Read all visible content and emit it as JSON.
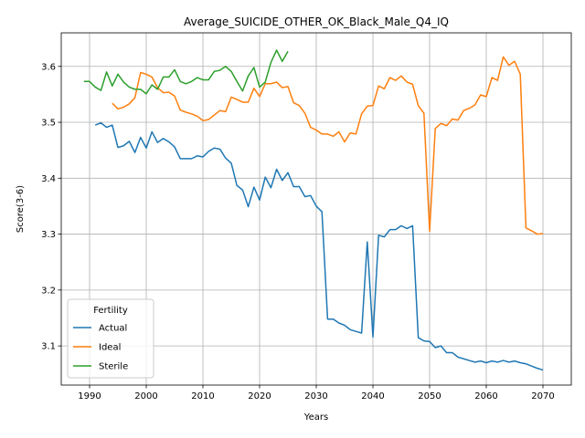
{
  "chart_data": {
    "type": "line",
    "title": "Average_SUICIDE_OTHER_OK_Black_Male_Q4_IQ",
    "xlabel": "Years",
    "ylabel": "Score(3-6)",
    "xlim": [
      1985,
      2075
    ],
    "ylim": [
      3.03,
      3.66
    ],
    "xticks": [
      1990,
      2000,
      2010,
      2020,
      2030,
      2040,
      2050,
      2060,
      2070
    ],
    "yticks": [
      3.1,
      3.2,
      3.3,
      3.4,
      3.5,
      3.6
    ],
    "grid": true,
    "legend": {
      "title": "Fertility",
      "placement": "lower-left"
    },
    "series": [
      {
        "name": "Actual",
        "color": "#1f77b4",
        "x": [
          1991,
          1992,
          1993,
          1994,
          1995,
          1996,
          1997,
          1998,
          1999,
          2000,
          2001,
          2002,
          2003,
          2004,
          2005,
          2006,
          2007,
          2008,
          2009,
          2010,
          2011,
          2012,
          2013,
          2014,
          2015,
          2016,
          2017,
          2018,
          2019,
          2020,
          2021,
          2022,
          2023,
          2024,
          2025,
          2026,
          2027,
          2028,
          2029,
          2030,
          2031,
          2032,
          2033,
          2034,
          2035,
          2036,
          2037,
          2038,
          2039,
          2040,
          2041,
          2042,
          2043,
          2044,
          2045,
          2046,
          2047,
          2048,
          2049,
          2050,
          2051,
          2052,
          2053,
          2054,
          2055,
          2056,
          2057,
          2058,
          2059,
          2060,
          2061,
          2062,
          2063,
          2064,
          2065,
          2066,
          2067,
          2068,
          2069,
          2070
        ],
        "values": [
          3.495,
          3.499,
          3.491,
          3.495,
          3.455,
          3.458,
          3.466,
          3.446,
          3.473,
          3.454,
          3.483,
          3.464,
          3.471,
          3.465,
          3.456,
          3.435,
          3.435,
          3.435,
          3.44,
          3.438,
          3.448,
          3.454,
          3.452,
          3.436,
          3.427,
          3.387,
          3.379,
          3.349,
          3.384,
          3.361,
          3.402,
          3.383,
          3.416,
          3.396,
          3.41,
          3.385,
          3.385,
          3.367,
          3.369,
          3.35,
          3.34,
          3.148,
          3.148,
          3.141,
          3.137,
          3.129,
          3.126,
          3.123,
          3.286,
          3.116,
          3.298,
          3.295,
          3.308,
          3.308,
          3.315,
          3.31,
          3.315,
          3.115,
          3.109,
          3.108,
          3.097,
          3.1,
          3.088,
          3.088,
          3.08,
          3.077,
          3.074,
          3.071,
          3.073,
          3.07,
          3.073,
          3.071,
          3.074,
          3.071,
          3.073,
          3.07,
          3.068,
          3.064,
          3.06,
          3.057
        ]
      },
      {
        "name": "Ideal",
        "color": "#ff7f0e",
        "x": [
          1994,
          1995,
          1996,
          1997,
          1998,
          1999,
          2000,
          2001,
          2002,
          2003,
          2004,
          2005,
          2006,
          2007,
          2008,
          2009,
          2010,
          2011,
          2012,
          2013,
          2014,
          2015,
          2016,
          2017,
          2018,
          2019,
          2020,
          2021,
          2022,
          2023,
          2024,
          2025,
          2026,
          2027,
          2028,
          2029,
          2030,
          2031,
          2032,
          2033,
          2034,
          2035,
          2036,
          2037,
          2038,
          2039,
          2040,
          2041,
          2042,
          2043,
          2044,
          2045,
          2046,
          2047,
          2048,
          2049,
          2050,
          2051,
          2052,
          2053,
          2054,
          2055,
          2056,
          2057,
          2058,
          2059,
          2060,
          2061,
          2062,
          2063,
          2064,
          2065,
          2066,
          2067,
          2068,
          2069,
          2070
        ],
        "values": [
          3.534,
          3.524,
          3.527,
          3.533,
          3.544,
          3.589,
          3.586,
          3.581,
          3.562,
          3.553,
          3.554,
          3.547,
          3.522,
          3.518,
          3.515,
          3.511,
          3.503,
          3.505,
          3.513,
          3.521,
          3.519,
          3.545,
          3.541,
          3.536,
          3.536,
          3.561,
          3.546,
          3.569,
          3.569,
          3.572,
          3.562,
          3.564,
          3.535,
          3.53,
          3.516,
          3.491,
          3.486,
          3.479,
          3.479,
          3.475,
          3.483,
          3.465,
          3.481,
          3.479,
          3.515,
          3.529,
          3.53,
          3.565,
          3.56,
          3.58,
          3.575,
          3.583,
          3.572,
          3.568,
          3.53,
          3.516,
          3.305,
          3.489,
          3.498,
          3.494,
          3.506,
          3.504,
          3.521,
          3.525,
          3.531,
          3.549,
          3.546,
          3.58,
          3.575,
          3.617,
          3.602,
          3.609,
          3.586,
          3.311,
          3.306,
          3.3,
          3.301
        ]
      },
      {
        "name": "Sterile",
        "color": "#2ca02c",
        "x": [
          1989,
          1990,
          1991,
          1992,
          1993,
          1994,
          1995,
          1996,
          1997,
          1998,
          1999,
          2000,
          2001,
          2002,
          2003,
          2004,
          2005,
          2006,
          2007,
          2008,
          2009,
          2010,
          2011,
          2012,
          2013,
          2014,
          2015,
          2016,
          2017,
          2018,
          2019,
          2020,
          2021,
          2022,
          2023,
          2024,
          2025
        ],
        "values": [
          3.573,
          3.573,
          3.563,
          3.557,
          3.59,
          3.565,
          3.586,
          3.572,
          3.563,
          3.559,
          3.559,
          3.551,
          3.567,
          3.559,
          3.581,
          3.581,
          3.594,
          3.573,
          3.569,
          3.573,
          3.58,
          3.576,
          3.576,
          3.591,
          3.593,
          3.6,
          3.591,
          3.573,
          3.556,
          3.583,
          3.598,
          3.563,
          3.572,
          3.607,
          3.629,
          3.609,
          3.627
        ]
      }
    ]
  }
}
